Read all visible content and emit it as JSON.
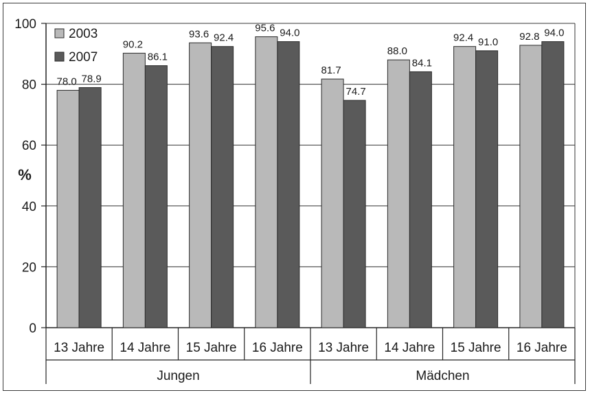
{
  "chart_data": {
    "type": "bar",
    "ylabel": "%",
    "ylim": [
      0,
      100
    ],
    "yticks": [
      0,
      20,
      40,
      60,
      80,
      100
    ],
    "grid": true,
    "legend_position": "top-left",
    "groups": [
      {
        "label": "Jungen",
        "categories": [
          "13 Jahre",
          "14 Jahre",
          "15 Jahre",
          "16 Jahre"
        ]
      },
      {
        "label": "Mädchen",
        "categories": [
          "13 Jahre",
          "14 Jahre",
          "15 Jahre",
          "16 Jahre"
        ]
      }
    ],
    "series": [
      {
        "name": "2003",
        "color": "#b9b9b9",
        "values": [
          78.0,
          90.2,
          93.6,
          95.6,
          81.7,
          88.0,
          92.4,
          92.8
        ],
        "labels": [
          "78.0",
          "90.2",
          "93.6",
          "95.6",
          "81.7",
          "88.0",
          "92.4",
          "92.8"
        ]
      },
      {
        "name": "2007",
        "color": "#5a5a5a",
        "values": [
          78.9,
          86.1,
          92.4,
          94.0,
          74.7,
          84.1,
          91.0,
          94.0
        ],
        "labels": [
          "78.9",
          "86.1",
          "92.4",
          "94.0",
          "74.7",
          "84.1",
          "91.0",
          "94.0"
        ]
      }
    ]
  }
}
